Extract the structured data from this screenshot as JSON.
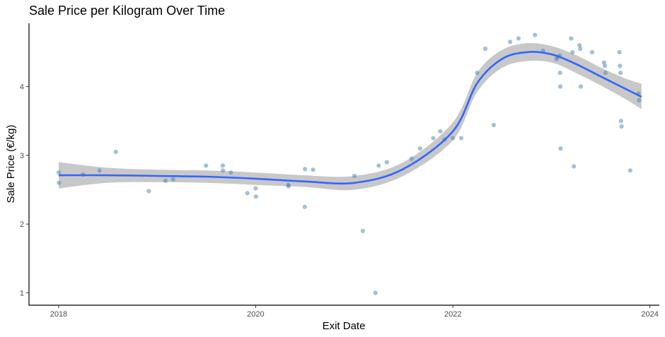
{
  "chart_data": {
    "type": "scatter",
    "title": "Sale Price per Kilogram Over Time",
    "xlabel": "Exit Date",
    "ylabel": "Sale Price (€/kg)",
    "xlim": [
      "2017-09-13",
      "2024-02-05"
    ],
    "ylim": [
      0.82,
      4.92
    ],
    "x_ticks": [
      {
        "label": "2018",
        "date": "2018-01-01"
      },
      {
        "label": "2020",
        "date": "2020-01-01"
      },
      {
        "label": "2022",
        "date": "2022-01-01"
      },
      {
        "label": "2024",
        "date": "2024-01-01"
      }
    ],
    "y_ticks": [
      1,
      2,
      3,
      4
    ],
    "grid": false,
    "colors": {
      "points": "#4682B4",
      "smooth_line": "#3366FF",
      "ribbon": "#C8C8C8",
      "axis": "#000000"
    },
    "series": [
      {
        "type": "scatter",
        "points": [
          {
            "x": "2018-01-01",
            "y": 2.75
          },
          {
            "x": "2018-01-02",
            "y": 2.6
          },
          {
            "x": "2018-04-01",
            "y": 2.72
          },
          {
            "x": "2018-06-01",
            "y": 2.78
          },
          {
            "x": "2018-08-01",
            "y": 3.05
          },
          {
            "x": "2018-12-01",
            "y": 2.48
          },
          {
            "x": "2019-02-01",
            "y": 2.63
          },
          {
            "x": "2019-03-01",
            "y": 2.65
          },
          {
            "x": "2019-07-01",
            "y": 2.85
          },
          {
            "x": "2019-09-01",
            "y": 2.85
          },
          {
            "x": "2019-09-02",
            "y": 2.78
          },
          {
            "x": "2019-10-01",
            "y": 2.75
          },
          {
            "x": "2019-12-01",
            "y": 2.45
          },
          {
            "x": "2020-01-01",
            "y": 2.52
          },
          {
            "x": "2020-01-02",
            "y": 2.4
          },
          {
            "x": "2020-05-01",
            "y": 2.57
          },
          {
            "x": "2020-05-02",
            "y": 2.55
          },
          {
            "x": "2020-07-01",
            "y": 2.25
          },
          {
            "x": "2020-07-02",
            "y": 2.8
          },
          {
            "x": "2020-08-01",
            "y": 2.79
          },
          {
            "x": "2021-01-01",
            "y": 2.7
          },
          {
            "x": "2021-02-01",
            "y": 1.9
          },
          {
            "x": "2021-03-20",
            "y": 1.0
          },
          {
            "x": "2021-04-01",
            "y": 2.85
          },
          {
            "x": "2021-05-01",
            "y": 2.9
          },
          {
            "x": "2021-08-01",
            "y": 2.95
          },
          {
            "x": "2021-09-01",
            "y": 3.1
          },
          {
            "x": "2021-10-20",
            "y": 3.25
          },
          {
            "x": "2021-11-15",
            "y": 3.35
          },
          {
            "x": "2021-12-01",
            "y": 3.23
          },
          {
            "x": "2022-01-01",
            "y": 3.25
          },
          {
            "x": "2022-02-01",
            "y": 3.25
          },
          {
            "x": "2022-04-01",
            "y": 4.2
          },
          {
            "x": "2022-05-01",
            "y": 4.55
          },
          {
            "x": "2022-06-01",
            "y": 3.44
          },
          {
            "x": "2022-08-01",
            "y": 4.65
          },
          {
            "x": "2022-09-01",
            "y": 4.7
          },
          {
            "x": "2022-11-01",
            "y": 4.75
          },
          {
            "x": "2022-12-01",
            "y": 4.52
          },
          {
            "x": "2023-01-20",
            "y": 4.4
          },
          {
            "x": "2023-01-25",
            "y": 4.43
          },
          {
            "x": "2023-02-01",
            "y": 4.45
          },
          {
            "x": "2023-02-02",
            "y": 4.2
          },
          {
            "x": "2023-02-03",
            "y": 4.0
          },
          {
            "x": "2023-02-04",
            "y": 3.1
          },
          {
            "x": "2023-03-15",
            "y": 4.7
          },
          {
            "x": "2023-03-20",
            "y": 4.5
          },
          {
            "x": "2023-03-25",
            "y": 2.84
          },
          {
            "x": "2023-04-15",
            "y": 4.6
          },
          {
            "x": "2023-04-18",
            "y": 4.55
          },
          {
            "x": "2023-04-20",
            "y": 4.0
          },
          {
            "x": "2023-06-01",
            "y": 4.5
          },
          {
            "x": "2023-07-15",
            "y": 4.35
          },
          {
            "x": "2023-07-18",
            "y": 4.3
          },
          {
            "x": "2023-07-20",
            "y": 4.2
          },
          {
            "x": "2023-09-10",
            "y": 4.5
          },
          {
            "x": "2023-09-12",
            "y": 4.3
          },
          {
            "x": "2023-09-14",
            "y": 4.2
          },
          {
            "x": "2023-09-16",
            "y": 3.5
          },
          {
            "x": "2023-09-18",
            "y": 3.42
          },
          {
            "x": "2023-10-20",
            "y": 2.78
          },
          {
            "x": "2023-11-20",
            "y": 3.9
          },
          {
            "x": "2023-11-22",
            "y": 3.8
          }
        ]
      },
      {
        "type": "line",
        "style": "smooth",
        "points": [
          {
            "x": "2018-01-01",
            "y": 2.71,
            "lower": 2.52,
            "upper": 2.9
          },
          {
            "x": "2018-07-01",
            "y": 2.71,
            "lower": 2.6,
            "upper": 2.82
          },
          {
            "x": "2019-01-01",
            "y": 2.7,
            "lower": 2.61,
            "upper": 2.79
          },
          {
            "x": "2019-07-01",
            "y": 2.69,
            "lower": 2.6,
            "upper": 2.78
          },
          {
            "x": "2020-01-01",
            "y": 2.66,
            "lower": 2.57,
            "upper": 2.75
          },
          {
            "x": "2020-07-01",
            "y": 2.62,
            "lower": 2.54,
            "upper": 2.71
          },
          {
            "x": "2021-01-01",
            "y": 2.6,
            "lower": 2.5,
            "upper": 2.7
          },
          {
            "x": "2021-07-01",
            "y": 2.8,
            "lower": 2.7,
            "upper": 2.9
          },
          {
            "x": "2022-01-01",
            "y": 3.35,
            "lower": 3.22,
            "upper": 3.48
          },
          {
            "x": "2022-04-01",
            "y": 4.05,
            "lower": 3.92,
            "upper": 4.2
          },
          {
            "x": "2022-07-01",
            "y": 4.4,
            "lower": 4.27,
            "upper": 4.53
          },
          {
            "x": "2022-10-01",
            "y": 4.5,
            "lower": 4.37,
            "upper": 4.63
          },
          {
            "x": "2023-01-01",
            "y": 4.47,
            "lower": 4.35,
            "upper": 4.59
          },
          {
            "x": "2023-04-01",
            "y": 4.33,
            "lower": 4.2,
            "upper": 4.46
          },
          {
            "x": "2023-07-01",
            "y": 4.15,
            "lower": 4.02,
            "upper": 4.28
          },
          {
            "x": "2023-10-01",
            "y": 3.97,
            "lower": 3.82,
            "upper": 4.12
          },
          {
            "x": "2023-12-01",
            "y": 3.85,
            "lower": 3.67,
            "upper": 4.04
          }
        ]
      }
    ]
  }
}
